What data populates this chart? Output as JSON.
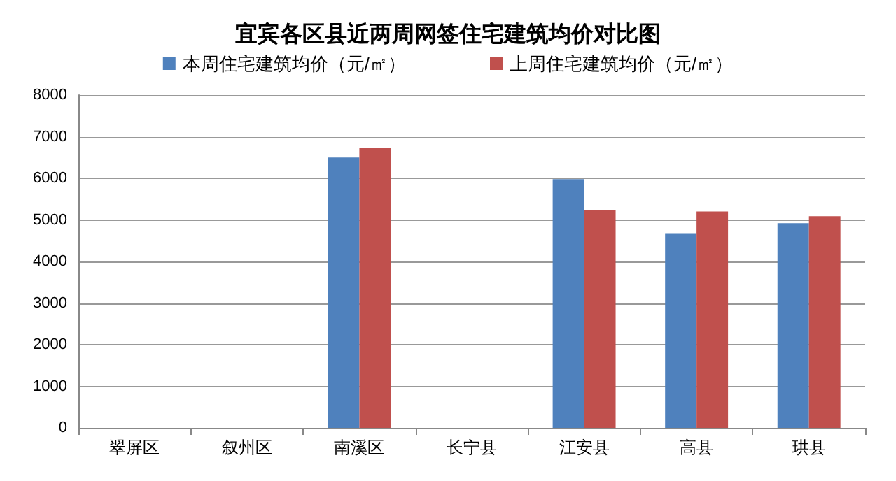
{
  "chart_data": {
    "type": "bar",
    "title": "宜宾各区县近两周网签住宅建筑均价对比图",
    "categories": [
      "翠屏区",
      "叙州区",
      "南溪区",
      "长宁县",
      "江安县",
      "高县",
      "珙县"
    ],
    "series": [
      {
        "name": "本周住宅建筑均价（元/㎡）",
        "color": "#4f81bd",
        "values": [
          null,
          null,
          6500,
          null,
          5980,
          4680,
          4920
        ]
      },
      {
        "name": "上周住宅建筑均价（元/㎡）",
        "color": "#c0504d",
        "values": [
          null,
          null,
          6740,
          null,
          5230,
          5200,
          5090
        ]
      }
    ],
    "ylim": [
      0,
      8000
    ],
    "yticks": [
      0,
      1000,
      2000,
      3000,
      4000,
      5000,
      6000,
      7000,
      8000
    ],
    "grid": "y",
    "legend": "top"
  }
}
